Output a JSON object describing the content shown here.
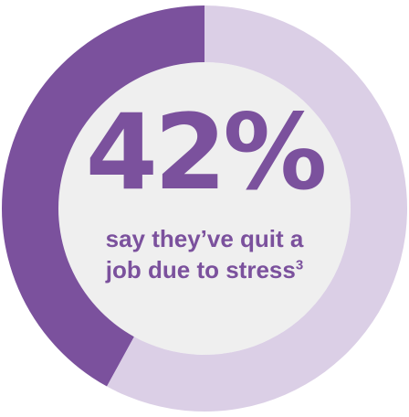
{
  "chart_data": {
    "type": "pie",
    "title": "",
    "slices": [
      {
        "label": "say they've quit a job due to stress",
        "value": 42,
        "color": "#7b519d"
      },
      {
        "label": "",
        "value": 58,
        "color": "#dbcfe6"
      }
    ]
  },
  "stat": {
    "value_text": "42%",
    "caption_line1": "say they’ve quit a",
    "caption_line2": "job due to stress",
    "footnote": "3"
  },
  "colors": {
    "accent": "#7b519d",
    "track": "#dbcfe6",
    "center_fill": "#efefef"
  }
}
